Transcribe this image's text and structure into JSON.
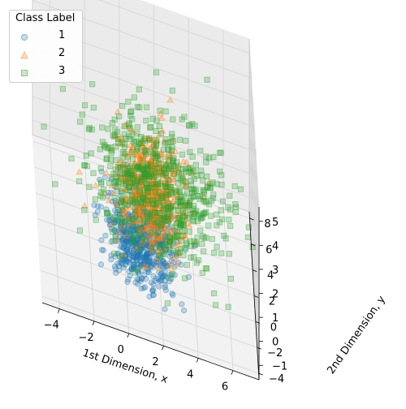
{
  "chart_data": {
    "type": "scatter",
    "projection": "3d",
    "title": "",
    "xlabel": "1st Dimension, x",
    "ylabel": "2nd Dimension, y",
    "zlabel": "",
    "xlim": [
      -5,
      7.5
    ],
    "ylim": [
      -4.5,
      8.5
    ],
    "zlim": [
      -1.6,
      5.6
    ],
    "xticks": [
      -4,
      -2,
      0,
      2,
      4,
      6
    ],
    "yticks": [
      -4,
      -2,
      0,
      2,
      4,
      6,
      8
    ],
    "zticks": [
      -1,
      0,
      1,
      2,
      3,
      4,
      5
    ],
    "grid": true,
    "legend": {
      "title": "Class Label",
      "placement": "top-left",
      "entries": [
        {
          "label": "1",
          "color": "#1f77b4",
          "marker": "circle"
        },
        {
          "label": "2",
          "color": "#ff7f0e",
          "marker": "triangle"
        },
        {
          "label": "3",
          "color": "#2ca02c",
          "marker": "square"
        }
      ]
    },
    "series": [
      {
        "name": "1",
        "color": "#1f77b4",
        "marker": "circle",
        "center": [
          1.0,
          0.0,
          0.0
        ],
        "spread": [
          1.0,
          1.0,
          1.0
        ]
      },
      {
        "name": "2",
        "color": "#ff7f0e",
        "marker": "triangle",
        "center": [
          1.5,
          1.5,
          1.5
        ],
        "spread": [
          1.0,
          1.0,
          1.0
        ]
      },
      {
        "name": "3",
        "color": "#2ca02c",
        "marker": "square",
        "center": [
          2.0,
          2.0,
          1.5
        ],
        "spread": [
          2.0,
          2.0,
          1.0
        ]
      }
    ]
  }
}
